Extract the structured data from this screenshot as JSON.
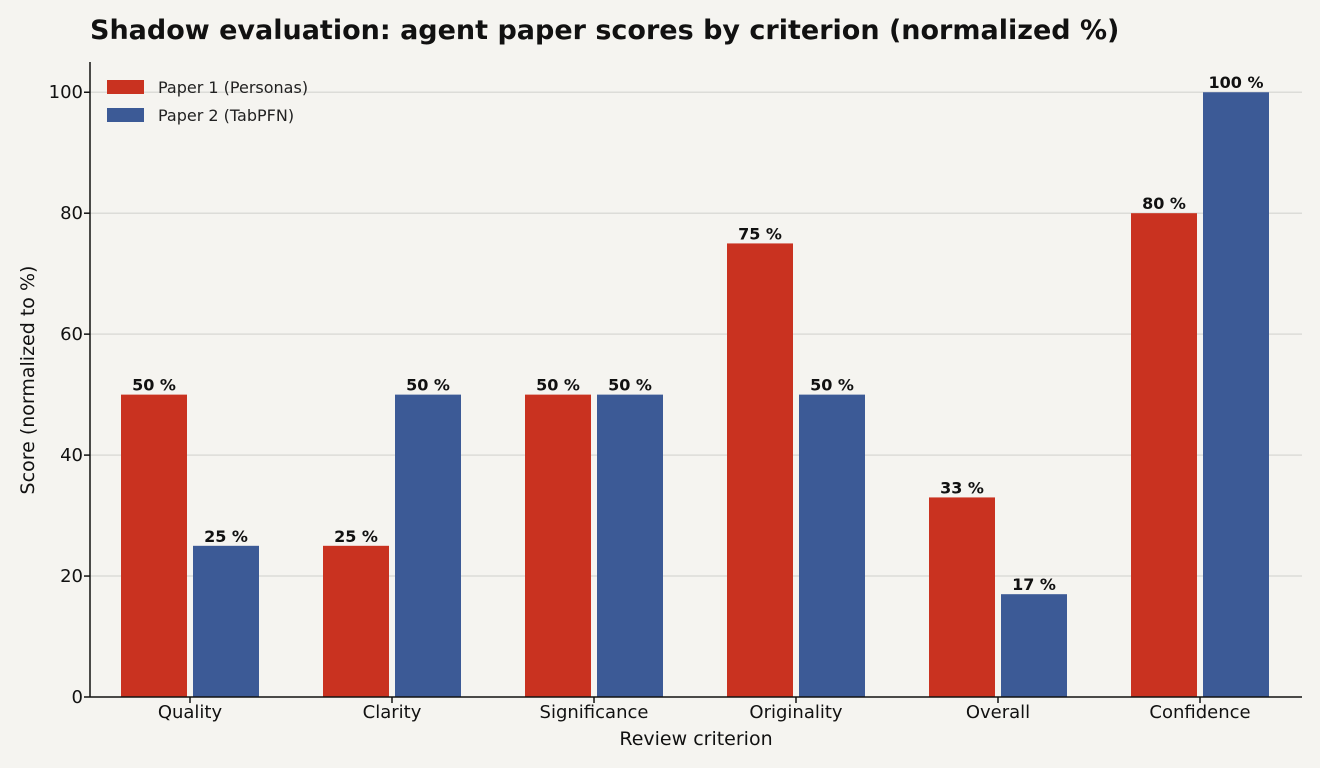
{
  "chart_data": {
    "type": "bar",
    "title": "Shadow evaluation: agent paper scores by criterion (normalized %)",
    "xlabel": "Review criterion",
    "ylabel": "Score (normalized to %)",
    "ylim": [
      0,
      105
    ],
    "yticks": [
      0,
      20,
      40,
      60,
      80,
      100
    ],
    "grid": true,
    "legend_position": "top-left",
    "categories": [
      "Quality",
      "Clarity",
      "Significance",
      "Originality",
      "Overall",
      "Confidence"
    ],
    "series": [
      {
        "name": "Paper 1 (Personas)",
        "color": "#c93220",
        "values": [
          50,
          25,
          50,
          75,
          33,
          80
        ],
        "labels": [
          "50 %",
          "25 %",
          "50 %",
          "75 %",
          "33 %",
          "80 %"
        ]
      },
      {
        "name": "Paper 2 (TabPFN)",
        "color": "#3c5a96",
        "values": [
          25,
          50,
          50,
          50,
          17,
          100
        ],
        "labels": [
          "25 %",
          "50 %",
          "50 %",
          "50 %",
          "17 %",
          "100 %"
        ]
      }
    ]
  }
}
